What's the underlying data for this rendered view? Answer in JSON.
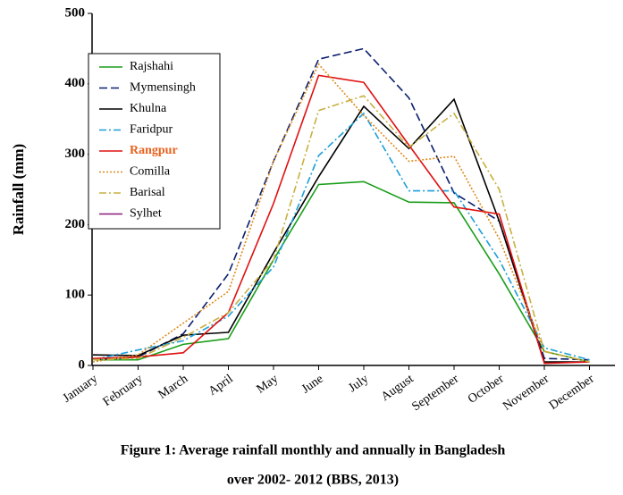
{
  "chart_data": {
    "type": "line",
    "y_label": "Rainfall (mm)",
    "caption": [
      "Figure 1: Average rainfall monthly and annually in Bangladesh",
      "over 2002- 2012 (BBS, 2013)"
    ],
    "categories": [
      "January",
      "February",
      "March",
      "April",
      "May",
      "June",
      "July",
      "August",
      "September",
      "October",
      "November",
      "December"
    ],
    "ylim": [
      0,
      500
    ],
    "yticks": [
      0,
      100,
      200,
      300,
      400,
      500
    ],
    "legend": "upper left",
    "series": [
      {
        "name": "Rajshahi",
        "color": "#1a9e1a",
        "dash": "solid",
        "values": [
          8,
          8,
          30,
          38,
          150,
          257,
          261,
          232,
          231,
          130,
          20,
          5
        ]
      },
      {
        "name": "Mymensingh",
        "color": "#0b1f6e",
        "dash": "dashed",
        "values": [
          8,
          12,
          45,
          130,
          290,
          435,
          450,
          380,
          245,
          205,
          10,
          8
        ]
      },
      {
        "name": "Khulna",
        "color": "#000000",
        "dash": "solid",
        "values": [
          15,
          14,
          43,
          47,
          160,
          268,
          368,
          308,
          378,
          205,
          5,
          5
        ]
      },
      {
        "name": "Faridpur",
        "color": "#1a9ed8",
        "dash": "dashdot",
        "values": [
          8,
          22,
          35,
          70,
          140,
          298,
          358,
          248,
          248,
          150,
          25,
          8
        ]
      },
      {
        "name": "Rangpur",
        "color": "#e01010",
        "dash": "solid",
        "label_color": "#e8601c",
        "values": [
          10,
          12,
          18,
          75,
          230,
          412,
          402,
          313,
          225,
          215,
          3,
          5
        ]
      },
      {
        "name": "Comilla",
        "color": "#e08a1a",
        "dash": "dotted",
        "values": [
          5,
          15,
          60,
          105,
          290,
          428,
          355,
          290,
          297,
          180,
          20,
          5
        ]
      },
      {
        "name": "Barisal",
        "color": "#c8b040",
        "dash": "dashdot",
        "values": [
          8,
          10,
          40,
          75,
          150,
          362,
          383,
          310,
          358,
          250,
          20,
          5
        ]
      },
      {
        "name": "Sylhet",
        "color": "#8a1a7a",
        "dash": "solid",
        "values": [
          null,
          null,
          null,
          null,
          null,
          null,
          null,
          null,
          null,
          null,
          null,
          null
        ]
      }
    ]
  }
}
